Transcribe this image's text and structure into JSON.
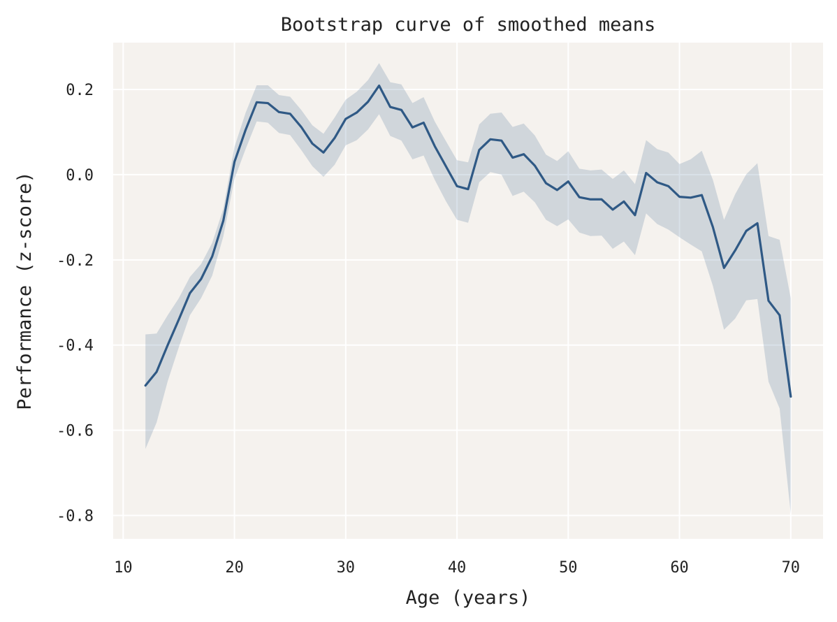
{
  "chart_data": {
    "type": "line",
    "title": "Bootstrap curve of smoothed means",
    "xlabel": "Age (years)",
    "ylabel": "Performance (z-score)",
    "xlim": [
      9.1,
      72.9
    ],
    "ylim": [
      -0.855,
      0.31
    ],
    "xticks": [
      10,
      20,
      30,
      40,
      50,
      60,
      70
    ],
    "xtick_labels": [
      "10",
      "20",
      "30",
      "40",
      "50",
      "60",
      "70"
    ],
    "yticks": [
      0.2,
      0.0,
      -0.2,
      -0.4,
      -0.6,
      -0.8
    ],
    "ytick_labels": [
      "0.2",
      "0.0",
      "-0.2",
      "-0.4",
      "-0.6",
      "-0.8"
    ],
    "grid": true,
    "legend": "none",
    "series": [
      {
        "x": [
          12,
          13,
          14,
          15,
          16,
          17,
          18,
          19,
          20,
          21,
          22,
          23,
          24,
          25,
          26,
          27,
          28,
          29,
          30,
          31,
          32,
          33,
          34,
          35,
          36,
          37,
          38,
          39,
          40,
          41,
          42,
          43,
          44,
          45,
          46,
          47,
          48,
          49,
          50,
          51,
          52,
          53,
          54,
          55,
          56,
          57,
          58,
          59,
          60,
          61,
          62,
          63,
          64,
          65,
          66,
          67,
          68,
          69,
          70
        ],
        "y": [
          -0.495,
          -0.463,
          -0.4,
          -0.34,
          -0.278,
          -0.245,
          -0.192,
          -0.108,
          0.03,
          0.105,
          0.17,
          0.168,
          0.147,
          0.143,
          0.112,
          0.073,
          0.052,
          0.086,
          0.131,
          0.146,
          0.171,
          0.209,
          0.159,
          0.152,
          0.111,
          0.122,
          0.067,
          0.02,
          -0.027,
          -0.034,
          0.058,
          0.083,
          0.08,
          0.04,
          0.048,
          0.021,
          -0.02,
          -0.036,
          -0.016,
          -0.053,
          -0.058,
          -0.058,
          -0.082,
          -0.063,
          -0.095,
          0.004,
          -0.018,
          -0.027,
          -0.052,
          -0.054,
          -0.048,
          -0.123,
          -0.219,
          -0.178,
          -0.132,
          -0.114,
          -0.296,
          -0.33,
          -0.521
        ],
        "lower": [
          -0.644,
          -0.582,
          -0.485,
          -0.405,
          -0.33,
          -0.29,
          -0.237,
          -0.145,
          -0.01,
          0.06,
          0.125,
          0.122,
          0.098,
          0.093,
          0.058,
          0.02,
          -0.005,
          0.023,
          0.069,
          0.081,
          0.106,
          0.142,
          0.091,
          0.08,
          0.036,
          0.045,
          -0.012,
          -0.062,
          -0.106,
          -0.113,
          -0.018,
          0.006,
          0.0,
          -0.05,
          -0.04,
          -0.065,
          -0.106,
          -0.121,
          -0.105,
          -0.136,
          -0.144,
          -0.143,
          -0.174,
          -0.157,
          -0.189,
          -0.091,
          -0.116,
          -0.129,
          -0.147,
          -0.164,
          -0.18,
          -0.261,
          -0.364,
          -0.338,
          -0.295,
          -0.292,
          -0.486,
          -0.549,
          -0.796
        ],
        "upper": [
          -0.375,
          -0.373,
          -0.33,
          -0.29,
          -0.24,
          -0.21,
          -0.16,
          -0.08,
          0.065,
          0.145,
          0.21,
          0.21,
          0.187,
          0.183,
          0.152,
          0.116,
          0.096,
          0.134,
          0.176,
          0.195,
          0.222,
          0.262,
          0.217,
          0.212,
          0.168,
          0.182,
          0.125,
          0.079,
          0.034,
          0.029,
          0.118,
          0.143,
          0.146,
          0.112,
          0.12,
          0.092,
          0.047,
          0.032,
          0.055,
          0.014,
          0.01,
          0.012,
          -0.01,
          0.01,
          -0.022,
          0.081,
          0.06,
          0.052,
          0.025,
          0.036,
          0.056,
          -0.012,
          -0.106,
          -0.046,
          0.001,
          0.027,
          -0.144,
          -0.153,
          -0.29
        ]
      }
    ],
    "colors": {
      "line": "#2f5985",
      "band": "#2f5985",
      "plot_background": "#f5f2ee",
      "grid": "#ffffff"
    }
  }
}
